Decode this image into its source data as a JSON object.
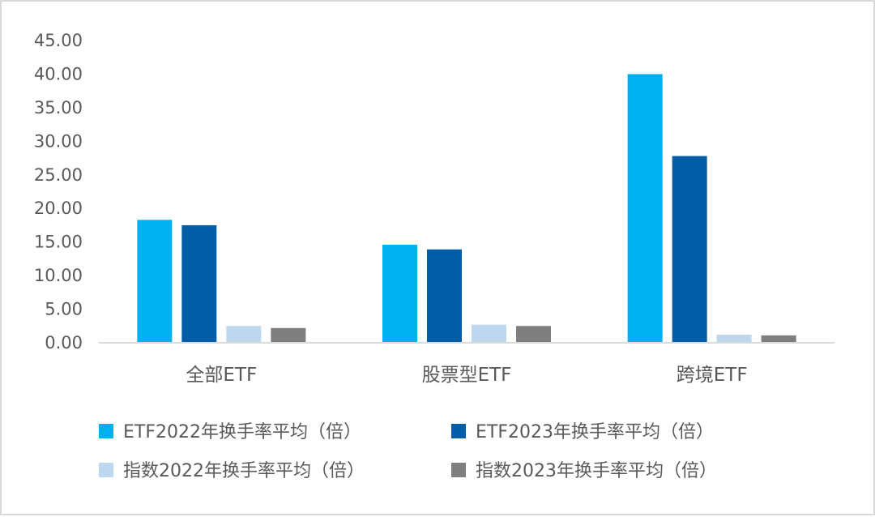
{
  "chart_data": {
    "type": "bar",
    "categories": [
      "全部ETF",
      "股票型ETF",
      "跨境ETF"
    ],
    "series": [
      {
        "name": "ETF2022年换手率平均（倍）",
        "values": [
          18.3,
          14.6,
          40.0
        ],
        "color": "#00b0f0"
      },
      {
        "name": "ETF2023年换手率平均（倍）",
        "values": [
          17.5,
          13.9,
          27.8
        ],
        "color": "#005ea8"
      },
      {
        "name": "指数2022年换手率平均（倍）",
        "values": [
          2.5,
          2.7,
          1.2
        ],
        "color": "#bdd7ee"
      },
      {
        "name": "指数2023年换手率平均（倍）",
        "values": [
          2.2,
          2.5,
          1.1
        ],
        "color": "#7f7f7f"
      }
    ],
    "yticks": [
      "0.00",
      "5.00",
      "10.00",
      "15.00",
      "20.00",
      "25.00",
      "30.00",
      "35.00",
      "40.00",
      "45.00"
    ],
    "ylim": [
      0,
      45
    ],
    "grid": false,
    "legend_position": "bottom"
  }
}
